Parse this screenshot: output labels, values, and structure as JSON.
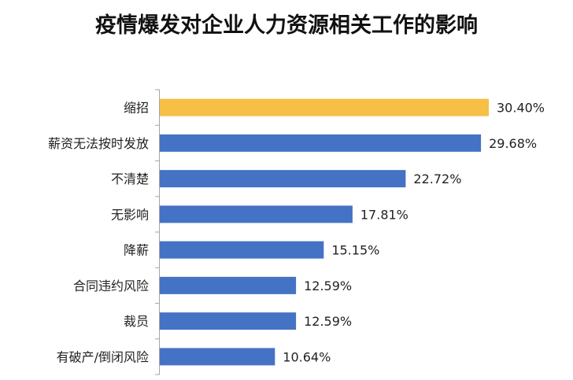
{
  "chart_data": {
    "type": "bar",
    "orientation": "horizontal",
    "title": "疫情爆发对企业人力资源相关工作的影响",
    "categories": [
      "缩招",
      "薪资无法按时发放",
      "不清楚",
      "无影响",
      "降薪",
      "合同违约风险",
      "裁员",
      "有破产/倒闭风险"
    ],
    "values": [
      30.4,
      29.68,
      22.72,
      17.81,
      15.15,
      12.59,
      12.59,
      10.64
    ],
    "value_labels": [
      "30.40%",
      "29.68%",
      "22.72%",
      "17.81%",
      "15.15%",
      "12.59%",
      "12.59%",
      "10.64%"
    ],
    "highlight_index": 0,
    "colors": {
      "highlight": "#F6BF45",
      "default": "#4472C4",
      "axis": "#A6A6A6"
    },
    "xlabel": "",
    "ylabel": "",
    "xlim": [
      0,
      30.4
    ],
    "grid": false,
    "legend": "none"
  }
}
